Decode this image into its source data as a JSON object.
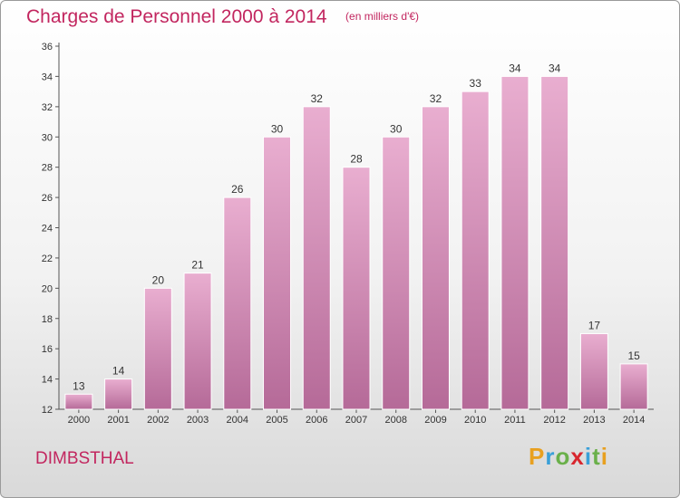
{
  "title": "Charges de Personnel 2000 à 2014",
  "unit": "(en milliers d'€)",
  "commune": "DIMBSTHAL",
  "logo": {
    "letters": [
      "P",
      "r",
      "o",
      "x",
      "i",
      "t",
      "i"
    ],
    "colors": [
      "#e8a020",
      "#3aa0d8",
      "#6ab04a",
      "#d8262e",
      "#3aa0d8",
      "#6ab04a",
      "#e8a020"
    ]
  },
  "colors": {
    "accent": "#c2265f",
    "bar_top": "#e9aed0",
    "bar_bottom": "#b56a98"
  },
  "chart_data": {
    "type": "bar",
    "categories": [
      "2000",
      "2001",
      "2002",
      "2003",
      "2004",
      "2005",
      "2006",
      "2007",
      "2008",
      "2009",
      "2010",
      "2011",
      "2012",
      "2013",
      "2014"
    ],
    "values": [
      13,
      14,
      20,
      21,
      26,
      30,
      32,
      28,
      30,
      32,
      33,
      34,
      34,
      17,
      15
    ],
    "ylim": [
      12,
      36
    ],
    "yticks": [
      12,
      14,
      16,
      18,
      20,
      22,
      24,
      26,
      28,
      30,
      32,
      34,
      36
    ],
    "grid": false,
    "data_labels": true
  }
}
